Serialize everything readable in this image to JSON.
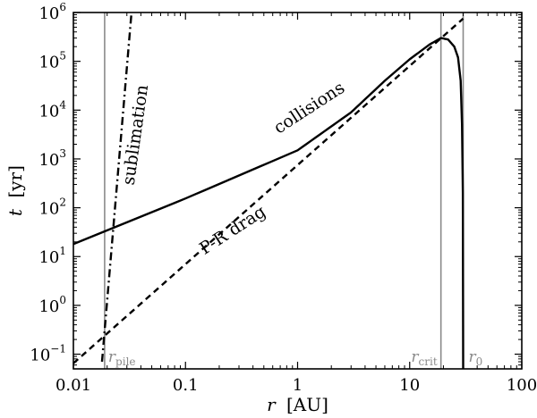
{
  "chart_data": {
    "type": "line",
    "xscale": "log",
    "yscale": "log",
    "xlim": [
      0.01,
      100
    ],
    "ylim": [
      0.05,
      1000000
    ],
    "xlabel": {
      "var": "r",
      "unit": "[AU]"
    },
    "ylabel": {
      "var": "t",
      "unit": "[yr]"
    },
    "x_ticks": [
      {
        "value": 0.01,
        "label": "0.01"
      },
      {
        "value": 0.1,
        "label": "0.1"
      },
      {
        "value": 1,
        "label": "1"
      },
      {
        "value": 10,
        "label": "10"
      },
      {
        "value": 100,
        "label": "100"
      }
    ],
    "y_ticks": [
      {
        "value": 0.1,
        "base": "10",
        "exp": "−1"
      },
      {
        "value": 1,
        "base": "10",
        "exp": "0"
      },
      {
        "value": 10,
        "base": "10",
        "exp": "1"
      },
      {
        "value": 100,
        "base": "10",
        "exp": "2"
      },
      {
        "value": 1000,
        "base": "10",
        "exp": "3"
      },
      {
        "value": 10000,
        "base": "10",
        "exp": "4"
      },
      {
        "value": 100000,
        "base": "10",
        "exp": "5"
      },
      {
        "value": 1000000,
        "base": "10",
        "exp": "6"
      }
    ],
    "series": [
      {
        "name": "collisions",
        "style": "solid",
        "color": "#000000",
        "points": [
          [
            0.01,
            18
          ],
          [
            0.1,
            155
          ],
          [
            1,
            1500
          ],
          [
            3,
            9000
          ],
          [
            6,
            40000
          ],
          [
            10,
            110000
          ],
          [
            15,
            220000
          ],
          [
            19,
            300000
          ],
          [
            22,
            280000
          ],
          [
            25,
            200000
          ],
          [
            27,
            120000
          ],
          [
            28.5,
            40000
          ],
          [
            29.3,
            5000
          ],
          [
            29.8,
            200
          ],
          [
            30,
            0.05
          ]
        ]
      },
      {
        "name": "P-R drag",
        "style": "dashed",
        "color": "#000000",
        "points": [
          [
            0.01,
            0.065
          ],
          [
            30,
            750000
          ]
        ]
      },
      {
        "name": "sublimation",
        "style": "dashdot",
        "color": "#000000",
        "points": [
          [
            0.018,
            0.07
          ],
          [
            0.033,
            1000000
          ]
        ]
      }
    ],
    "vlines": [
      {
        "x": 0.019,
        "name": "r",
        "sub": "pile",
        "color": "#8a8a8a"
      },
      {
        "x": 19,
        "name": "r",
        "sub": "crit",
        "color": "#8a8a8a"
      },
      {
        "x": 30,
        "name": "r",
        "sub": "0",
        "color": "#8a8a8a"
      }
    ],
    "annotations": {
      "collisions": "collisions",
      "pr_drag": "P-R drag",
      "sublimation": "sublimation"
    }
  }
}
